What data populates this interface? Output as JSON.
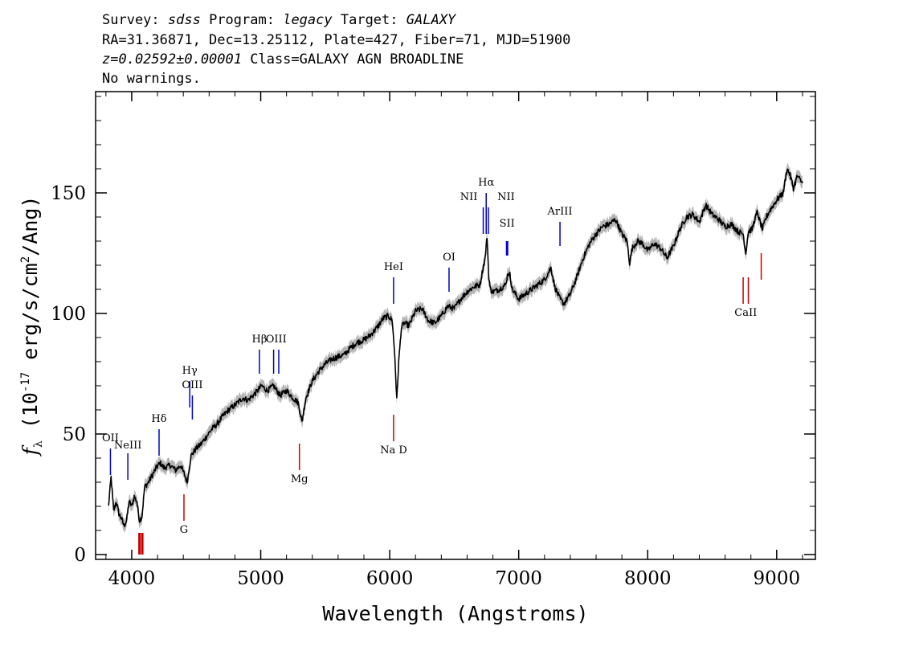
{
  "header": {
    "line1": {
      "survey_label": "Survey: ",
      "survey": "sdss",
      "program_label": " Program: ",
      "program": "legacy",
      "target_label": " Target: ",
      "target": "GALAXY"
    },
    "line2": "RA=31.36871, Dec=13.25112, Plate=427, Fiber=71, MJD=51900",
    "line3": {
      "z": "z=0.02592±0.00001",
      "class_text": " Class=GALAXY AGN BROADLINE"
    },
    "line4": "No warnings."
  },
  "chart_data": {
    "type": "line",
    "xlabel": "Wavelength (Angstroms)",
    "ylabel": {
      "prefix": "(10",
      "exp1": "-17",
      "middle": " erg/s/cm",
      "exp2": "2",
      "suffix": "/Ang)"
    },
    "xlim": [
      3720,
      9300
    ],
    "ylim": [
      -2,
      192
    ],
    "x_ticks": [
      4000,
      5000,
      6000,
      7000,
      8000,
      9000
    ],
    "y_ticks": [
      0,
      50,
      100,
      150
    ],
    "x_tick_labels": [
      "4000",
      "5000",
      "6000",
      "7000",
      "8000",
      "9000"
    ],
    "y_tick_labels": [
      "0",
      "50",
      "100",
      "150"
    ],
    "colors": {
      "flux": "#000000",
      "error_band": "#b4b4b4",
      "emission": "#0000cc",
      "absorption": "#cc0000"
    },
    "series": [
      {
        "role": "flux",
        "points": [
          [
            3820,
            20
          ],
          [
            3840,
            32
          ],
          [
            3860,
            18
          ],
          [
            3880,
            22
          ],
          [
            3900,
            17
          ],
          [
            3920,
            15
          ],
          [
            3940,
            12
          ],
          [
            3960,
            14
          ],
          [
            3980,
            22
          ],
          [
            4000,
            20
          ],
          [
            4020,
            24
          ],
          [
            4040,
            22
          ],
          [
            4060,
            14
          ],
          [
            4080,
            16
          ],
          [
            4100,
            28
          ],
          [
            4130,
            30
          ],
          [
            4160,
            33
          ],
          [
            4190,
            36
          ],
          [
            4220,
            38
          ],
          [
            4250,
            36
          ],
          [
            4300,
            37
          ],
          [
            4340,
            35
          ],
          [
            4380,
            37
          ],
          [
            4410,
            33
          ],
          [
            4430,
            30
          ],
          [
            4460,
            41
          ],
          [
            4500,
            44
          ],
          [
            4540,
            46
          ],
          [
            4580,
            49
          ],
          [
            4620,
            52
          ],
          [
            4660,
            54
          ],
          [
            4700,
            57
          ],
          [
            4750,
            60
          ],
          [
            4800,
            62
          ],
          [
            4861,
            65
          ],
          [
            4900,
            64
          ],
          [
            4960,
            67
          ],
          [
            5007,
            70
          ],
          [
            5050,
            68
          ],
          [
            5100,
            70
          ],
          [
            5150,
            66
          ],
          [
            5200,
            68
          ],
          [
            5250,
            65
          ],
          [
            5290,
            63
          ],
          [
            5320,
            55
          ],
          [
            5350,
            65
          ],
          [
            5400,
            72
          ],
          [
            5450,
            76
          ],
          [
            5500,
            79
          ],
          [
            5550,
            81
          ],
          [
            5600,
            82
          ],
          [
            5650,
            83
          ],
          [
            5700,
            86
          ],
          [
            5750,
            88
          ],
          [
            5800,
            89
          ],
          [
            5850,
            91
          ],
          [
            5900,
            94
          ],
          [
            5950,
            98
          ],
          [
            5990,
            99
          ],
          [
            6020,
            97
          ],
          [
            6040,
            82
          ],
          [
            6055,
            64
          ],
          [
            6070,
            80
          ],
          [
            6090,
            94
          ],
          [
            6110,
            96
          ],
          [
            6150,
            95
          ],
          [
            6200,
            101
          ],
          [
            6250,
            102
          ],
          [
            6300,
            97
          ],
          [
            6350,
            96
          ],
          [
            6400,
            99
          ],
          [
            6450,
            103
          ],
          [
            6500,
            102
          ],
          [
            6550,
            106
          ],
          [
            6600,
            109
          ],
          [
            6650,
            111
          ],
          [
            6700,
            112
          ],
          [
            6720,
            118
          ],
          [
            6740,
            123
          ],
          [
            6755,
            132
          ],
          [
            6768,
            115
          ],
          [
            6780,
            110
          ],
          [
            6800,
            109
          ],
          [
            6850,
            110
          ],
          [
            6900,
            112
          ],
          [
            6916,
            117
          ],
          [
            6932,
            116
          ],
          [
            6950,
            110
          ],
          [
            7000,
            106
          ],
          [
            7050,
            108
          ],
          [
            7100,
            110
          ],
          [
            7150,
            112
          ],
          [
            7200,
            114
          ],
          [
            7250,
            119
          ],
          [
            7280,
            111
          ],
          [
            7320,
            106
          ],
          [
            7350,
            104
          ],
          [
            7400,
            108
          ],
          [
            7450,
            115
          ],
          [
            7500,
            123
          ],
          [
            7550,
            129
          ],
          [
            7600,
            133
          ],
          [
            7650,
            136
          ],
          [
            7700,
            137
          ],
          [
            7750,
            139
          ],
          [
            7800,
            133
          ],
          [
            7840,
            130
          ],
          [
            7860,
            121
          ],
          [
            7880,
            127
          ],
          [
            7920,
            130
          ],
          [
            7960,
            129
          ],
          [
            8000,
            126
          ],
          [
            8050,
            129
          ],
          [
            8100,
            127
          ],
          [
            8150,
            123
          ],
          [
            8200,
            128
          ],
          [
            8250,
            135
          ],
          [
            8300,
            140
          ],
          [
            8350,
            141
          ],
          [
            8400,
            138
          ],
          [
            8450,
            145
          ],
          [
            8500,
            141
          ],
          [
            8550,
            139
          ],
          [
            8600,
            136
          ],
          [
            8650,
            137
          ],
          [
            8700,
            134
          ],
          [
            8740,
            133
          ],
          [
            8760,
            125
          ],
          [
            8780,
            134
          ],
          [
            8810,
            135
          ],
          [
            8830,
            139
          ],
          [
            8850,
            142
          ],
          [
            8870,
            138
          ],
          [
            8890,
            135
          ],
          [
            8920,
            140
          ],
          [
            8950,
            143
          ],
          [
            9000,
            147
          ],
          [
            9050,
            150
          ],
          [
            9080,
            160
          ],
          [
            9100,
            158
          ],
          [
            9130,
            152
          ],
          [
            9160,
            157
          ],
          [
            9200,
            154
          ]
        ]
      }
    ],
    "line_markers": [
      {
        "label": "OII",
        "wavelength": 3835,
        "kind": "emission",
        "y_top": 44,
        "y_bottom": 33,
        "thick": false,
        "label_y": 47
      },
      {
        "label": "NeIII",
        "wavelength": 3970,
        "kind": "emission",
        "y_top": 42,
        "y_bottom": 31,
        "thick": false,
        "label_y": 44
      },
      {
        "label": "Hδ",
        "wavelength": 4212,
        "kind": "emission",
        "y_top": 52,
        "y_bottom": 41,
        "thick": false,
        "label_y": 55
      },
      {
        "label": "Hγ",
        "wavelength": 4450,
        "kind": "emission",
        "y_top": 72,
        "y_bottom": 61,
        "thick": false,
        "label_y": 75
      },
      {
        "label": "OIII",
        "wavelength": 4470,
        "kind": "emission",
        "y_top": 66,
        "y_bottom": 56,
        "thick": false,
        "label_y": 69
      },
      {
        "label": "Hβ",
        "wavelength": 4990,
        "kind": "emission",
        "y_top": 85,
        "y_bottom": 75,
        "thick": false,
        "label_y": 88
      },
      {
        "label": "OIII",
        "wavelength": 5100,
        "kind": "emission",
        "y_top": 85,
        "y_bottom": 75,
        "thick": false,
        "label_y": 88,
        "pair_offset": 40
      },
      {
        "label": "HeI",
        "wavelength": 6030,
        "kind": "emission",
        "y_top": 115,
        "y_bottom": 104,
        "thick": false,
        "label_y": 118
      },
      {
        "label": "OI",
        "wavelength": 6460,
        "kind": "emission",
        "y_top": 119,
        "y_bottom": 109,
        "thick": false,
        "label_y": 122
      },
      {
        "label": "NII",
        "wavelength": 6725,
        "kind": "emission",
        "y_top": 144,
        "y_bottom": 133,
        "thick": false,
        "label_y": 147,
        "label_dx": -18
      },
      {
        "label": "Hα",
        "wavelength": 6748,
        "kind": "emission",
        "y_top": 150,
        "y_bottom": 133,
        "thick": false,
        "label_y": 153
      },
      {
        "label": "NII",
        "wavelength": 6765,
        "kind": "emission",
        "y_top": 144,
        "y_bottom": 133,
        "thick": false,
        "label_y": 147,
        "label_dx": 22
      },
      {
        "label": "SII",
        "wavelength": 6910,
        "kind": "emission",
        "y_top": 130,
        "y_bottom": 124,
        "thick": true,
        "label_y": 136
      },
      {
        "label": "ArIII",
        "wavelength": 7320,
        "kind": "emission",
        "y_top": 138,
        "y_bottom": 128,
        "thick": false,
        "label_y": 141
      },
      {
        "label": "G",
        "wavelength": 4405,
        "kind": "absorption",
        "y_top": 25,
        "y_bottom": 14,
        "thick": false,
        "label_y": 9
      },
      {
        "label": "Mg",
        "wavelength": 5300,
        "kind": "absorption",
        "y_top": 46,
        "y_bottom": 35,
        "thick": false,
        "label_y": 30
      },
      {
        "label": "Na D",
        "wavelength": 6030,
        "kind": "absorption",
        "y_top": 58,
        "y_bottom": 47,
        "thick": false,
        "label_y": 42
      },
      {
        "label": "",
        "wavelength": 4060,
        "kind": "absorption",
        "y_top": 9,
        "y_bottom": 0,
        "thick": true,
        "label_y": 0,
        "pair_offset": 22
      },
      {
        "label": "CaII",
        "wavelength": 8740,
        "kind": "absorption",
        "y_top": 115,
        "y_bottom": 104,
        "thick": false,
        "label_y": 99,
        "pair_offset": 40
      },
      {
        "label": "",
        "wavelength": 8880,
        "kind": "absorption",
        "y_top": 125,
        "y_bottom": 114,
        "thick": false,
        "label_y": 0
      }
    ]
  }
}
